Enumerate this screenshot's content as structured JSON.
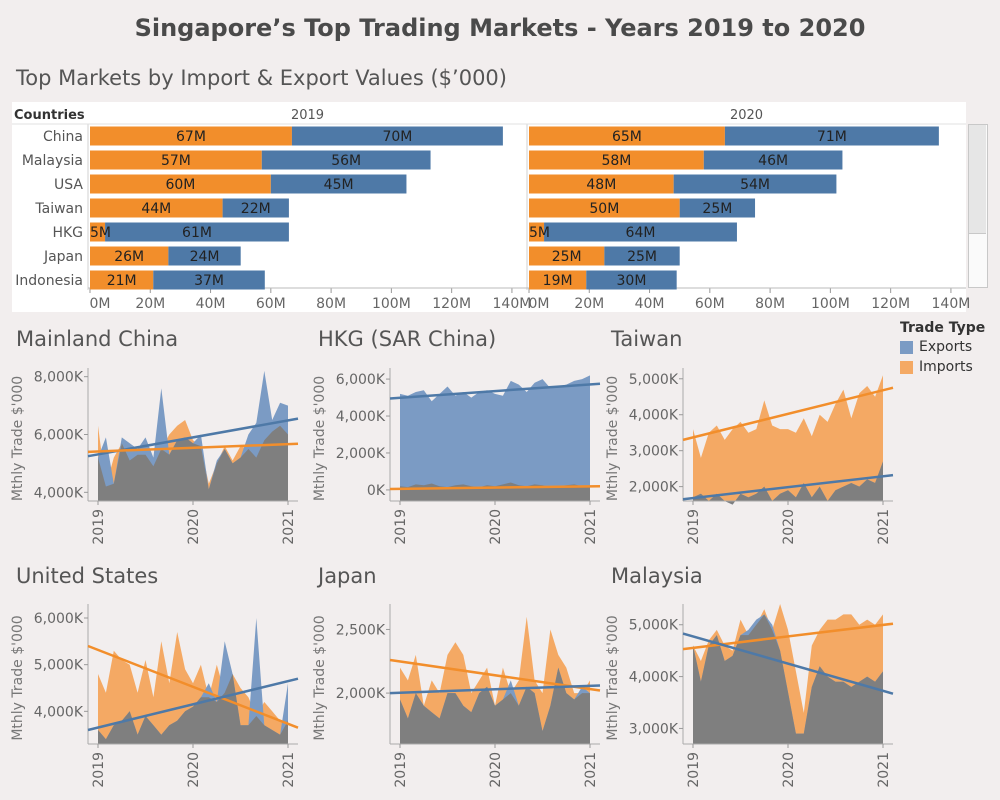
{
  "title": "Singapore’s Top Trading Markets - Years 2019 to 2020",
  "subtitle": "Top Markets by Import & Export Values ($’000)",
  "colors": {
    "imports": "#f28e2b",
    "exports": "#4e79a7",
    "overlap": "#7f7f7f"
  },
  "legend": {
    "title": "Trade Type",
    "items": [
      {
        "label": "Exports",
        "color": "#4e79a7"
      },
      {
        "label": "Imports",
        "color": "#f28e2b"
      }
    ]
  },
  "chart_data": [
    {
      "type": "bar",
      "orientation": "horizontal-stacked",
      "row_header": "Countries",
      "categories": [
        "China",
        "Malaysia",
        "USA",
        "Taiwan",
        "HKG",
        "Japan",
        "Indonesia"
      ],
      "panels": [
        "2019",
        "2020"
      ],
      "series": [
        {
          "name": "Imports",
          "values_2019": [
            67,
            57,
            60,
            44,
            5,
            26,
            21
          ],
          "values_2020": [
            65,
            58,
            48,
            50,
            5,
            25,
            19
          ],
          "labels_2019": [
            "67M",
            "57M",
            "60M",
            "44M",
            "5M",
            "26M",
            "21M"
          ],
          "labels_2020": [
            "65M",
            "58M",
            "48M",
            "50M",
            "5M",
            "25M",
            "19M"
          ]
        },
        {
          "name": "Exports",
          "values_2019": [
            70,
            56,
            45,
            22,
            61,
            24,
            37
          ],
          "values_2020": [
            71,
            46,
            54,
            25,
            64,
            25,
            30
          ],
          "labels_2019": [
            "70M",
            "56M",
            "45M",
            "22M",
            "61M",
            "24M",
            "37M"
          ],
          "labels_2020": [
            "71M",
            "46M",
            "54M",
            "25M",
            "64M",
            "25M",
            "30M"
          ]
        }
      ],
      "xticks": [
        "0M",
        "20M",
        "40M",
        "60M",
        "80M",
        "100M",
        "120M",
        "140M"
      ],
      "xlim": [
        0,
        140
      ]
    },
    {
      "type": "area",
      "title": "Mainland China",
      "ylabel": "Mthly Trade $'000",
      "ylim": [
        3700,
        8300
      ],
      "yticks": [
        4000,
        6000,
        8000
      ],
      "ytick_labels": [
        "4,000K",
        "6,000K",
        "8,000K"
      ],
      "xticks": [
        "2019",
        "2020",
        "2021"
      ],
      "series": [
        {
          "name": "Imports",
          "values": [
            6300,
            4200,
            5200,
            5700,
            5100,
            5300,
            5300,
            4900,
            5500,
            6000,
            6300,
            6500,
            5800,
            5600,
            4300,
            5000,
            5600,
            5100,
            5600,
            5500,
            5200,
            5800,
            6100,
            6300,
            6000
          ]
        },
        {
          "name": "Exports",
          "values": [
            5200,
            5900,
            4300,
            5900,
            5700,
            5500,
            5900,
            5200,
            7600,
            5300,
            5800,
            5900,
            5700,
            6000,
            4100,
            5100,
            5500,
            5000,
            5200,
            6000,
            6400,
            8200,
            6500,
            7100,
            7000
          ]
        }
      ],
      "trendlines": [
        {
          "name": "Exports",
          "start": 5250,
          "end": 6550
        },
        {
          "name": "Imports",
          "start": 5400,
          "end": 5680
        }
      ]
    },
    {
      "type": "area",
      "title": "HKG (SAR China)",
      "ylabel": "Mthly Trade $'000",
      "ylim": [
        -600,
        6600
      ],
      "yticks": [
        0,
        2000,
        4000,
        6000
      ],
      "ytick_labels": [
        "0K",
        "2,000K",
        "4,000K",
        "6,000K"
      ],
      "xticks": [
        "2019",
        "2020",
        "2021"
      ],
      "series": [
        {
          "name": "Imports",
          "values": [
            200,
            150,
            300,
            250,
            350,
            200,
            150,
            250,
            300,
            200,
            150,
            250,
            200,
            300,
            400,
            250,
            200,
            300,
            250,
            150,
            200,
            250,
            300,
            200,
            250
          ]
        },
        {
          "name": "Exports",
          "values": [
            5200,
            5100,
            5300,
            5400,
            4800,
            5200,
            5600,
            5100,
            5300,
            5000,
            5300,
            5400,
            5200,
            5100,
            5900,
            5700,
            5300,
            5800,
            6000,
            5500,
            5600,
            5700,
            5900,
            6000,
            6200
          ]
        }
      ],
      "trendlines": [
        {
          "name": "Exports",
          "start": 4950,
          "end": 5750
        },
        {
          "name": "Imports",
          "start": 50,
          "end": 200
        }
      ]
    },
    {
      "type": "area",
      "title": "Taiwan",
      "ylabel": "Mthly Trade $'000",
      "ylim": [
        1600,
        5300
      ],
      "yticks": [
        2000,
        3000,
        4000,
        5000
      ],
      "ytick_labels": [
        "2,000K",
        "3,000K",
        "4,000K",
        "5,000K"
      ],
      "xticks": [
        "2019",
        "2020",
        "2021"
      ],
      "series": [
        {
          "name": "Imports",
          "values": [
            3600,
            2800,
            3500,
            3700,
            3300,
            3600,
            3800,
            3500,
            3600,
            4400,
            3700,
            3600,
            3600,
            3500,
            3900,
            3400,
            4000,
            3800,
            4300,
            4700,
            3900,
            4600,
            4800,
            4500,
            5100
          ]
        },
        {
          "name": "Exports",
          "values": [
            1700,
            1800,
            1600,
            1800,
            1600,
            1500,
            1800,
            1700,
            1800,
            2000,
            1600,
            1800,
            1900,
            1700,
            2100,
            1700,
            2000,
            1600,
            1900,
            2000,
            2100,
            2000,
            2200,
            2100,
            2700
          ]
        }
      ],
      "trendlines": [
        {
          "name": "Imports",
          "start": 3300,
          "end": 4750
        },
        {
          "name": "Exports",
          "start": 1650,
          "end": 2320
        }
      ]
    },
    {
      "type": "area",
      "title": "United States",
      "ylabel": "Mthly Trade $'000",
      "ylim": [
        3300,
        6300
      ],
      "yticks": [
        4000,
        5000,
        6000
      ],
      "ytick_labels": [
        "4,000K",
        "5,000K",
        "6,000K"
      ],
      "xticks": [
        "2019",
        "2020",
        "2021"
      ],
      "series": [
        {
          "name": "Imports",
          "values": [
            4800,
            4400,
            5300,
            5100,
            5000,
            4400,
            5100,
            4300,
            5500,
            4600,
            5700,
            4900,
            4600,
            5000,
            4300,
            5000,
            4400,
            4800,
            4500,
            4300,
            3900,
            4200,
            4000,
            3800,
            3800
          ]
        },
        {
          "name": "Exports",
          "values": [
            3600,
            3400,
            3700,
            3800,
            4000,
            3500,
            3900,
            3700,
            3500,
            3700,
            3800,
            4000,
            4100,
            4300,
            4600,
            4200,
            5500,
            4800,
            3700,
            3700,
            6000,
            3700,
            3600,
            3500,
            4600
          ]
        }
      ],
      "trendlines": [
        {
          "name": "Imports",
          "start": 5400,
          "end": 3650
        },
        {
          "name": "Exports",
          "start": 3600,
          "end": 4700
        }
      ]
    },
    {
      "type": "area",
      "title": "Japan",
      "ylabel": "Mthly Trade $'000",
      "ylim": [
        1600,
        2700
      ],
      "yticks": [
        2000,
        2500
      ],
      "ytick_labels": [
        "2,000K",
        "2,500K"
      ],
      "xticks": [
        "2019",
        "2020",
        "2021"
      ],
      "series": [
        {
          "name": "Imports",
          "values": [
            2200,
            2100,
            2300,
            1900,
            2100,
            2000,
            2300,
            2400,
            2300,
            2000,
            2100,
            2200,
            1900,
            2200,
            2000,
            2100,
            2600,
            2100,
            2000,
            2500,
            2300,
            2200,
            2000,
            2000,
            2100
          ]
        },
        {
          "name": "Exports",
          "values": [
            1950,
            1800,
            2000,
            1900,
            1850,
            1800,
            2000,
            2000,
            1900,
            1850,
            2000,
            2050,
            1900,
            1950,
            2100,
            1900,
            2050,
            2000,
            1700,
            1900,
            2200,
            2000,
            1950,
            2050,
            2000
          ]
        }
      ],
      "trendlines": [
        {
          "name": "Imports",
          "start": 2260,
          "end": 2020
        },
        {
          "name": "Exports",
          "start": 2000,
          "end": 2060
        }
      ]
    },
    {
      "type": "area",
      "title": "Malaysia",
      "ylabel": "Mthly Trade $'000",
      "ylim": [
        2700,
        5400
      ],
      "yticks": [
        3000,
        4000,
        5000
      ],
      "ytick_labels": [
        "3,000K",
        "4,000K",
        "5,000K"
      ],
      "xticks": [
        "2019",
        "2020",
        "2021"
      ],
      "series": [
        {
          "name": "Imports",
          "values": [
            4600,
            4300,
            4700,
            4900,
            4600,
            4500,
            5100,
            4800,
            5000,
            5300,
            4900,
            5400,
            4900,
            4100,
            3300,
            4600,
            4900,
            5100,
            5100,
            5200,
            5200,
            5000,
            5100,
            5000,
            5200
          ]
        },
        {
          "name": "Exports",
          "values": [
            4600,
            3900,
            4600,
            4800,
            4300,
            4400,
            4800,
            4900,
            5100,
            5200,
            5000,
            4500,
            3700,
            2900,
            2900,
            3800,
            4200,
            4000,
            3900,
            3900,
            3800,
            3900,
            4000,
            3900,
            4100
          ]
        }
      ],
      "trendlines": [
        {
          "name": "Imports",
          "start": 4530,
          "end": 5020
        },
        {
          "name": "Exports",
          "start": 4830,
          "end": 3670
        }
      ]
    }
  ]
}
